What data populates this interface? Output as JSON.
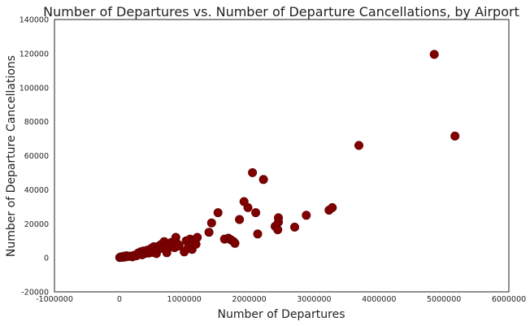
{
  "chart_data": {
    "type": "scatter",
    "title": "Number of Departures vs. Number of Departure Cancellations, by Airport",
    "xlabel": "Number of Departures",
    "ylabel": "Number of Departure Cancellations",
    "xlim": [
      -1000000,
      6000000
    ],
    "ylim": [
      -20000,
      140000
    ],
    "xticks": [
      -1000000,
      0,
      1000000,
      2000000,
      3000000,
      4000000,
      5000000,
      6000000
    ],
    "xtick_labels": [
      "-1000000",
      "0",
      "1000000",
      "2000000",
      "3000000",
      "4000000",
      "5000000",
      "6000000"
    ],
    "yticks": [
      -20000,
      0,
      20000,
      40000,
      60000,
      80000,
      100000,
      120000,
      140000
    ],
    "ytick_labels": [
      "-20000",
      "0",
      "20000",
      "40000",
      "60000",
      "80000",
      "100000",
      "120000",
      "140000"
    ],
    "grid": false,
    "marker_color": "#800000",
    "points": [
      [
        5000,
        200
      ],
      [
        15000,
        400
      ],
      [
        30000,
        600
      ],
      [
        50000,
        300
      ],
      [
        70000,
        900
      ],
      [
        90000,
        500
      ],
      [
        110000,
        1200
      ],
      [
        140000,
        800
      ],
      [
        170000,
        1000
      ],
      [
        200000,
        600
      ],
      [
        230000,
        1500
      ],
      [
        260000,
        1200
      ],
      [
        290000,
        2800
      ],
      [
        310000,
        2000
      ],
      [
        330000,
        3500
      ],
      [
        350000,
        1800
      ],
      [
        370000,
        4000
      ],
      [
        390000,
        2500
      ],
      [
        410000,
        3000
      ],
      [
        430000,
        4500
      ],
      [
        450000,
        2800
      ],
      [
        470000,
        3800
      ],
      [
        490000,
        5500
      ],
      [
        510000,
        3200
      ],
      [
        530000,
        6500
      ],
      [
        550000,
        4000
      ],
      [
        570000,
        2500
      ],
      [
        590000,
        5000
      ],
      [
        610000,
        7000
      ],
      [
        630000,
        6000
      ],
      [
        650000,
        8000
      ],
      [
        670000,
        5500
      ],
      [
        690000,
        9500
      ],
      [
        710000,
        7000
      ],
      [
        730000,
        3000
      ],
      [
        750000,
        8000
      ],
      [
        780000,
        6500
      ],
      [
        800000,
        9000
      ],
      [
        830000,
        7500
      ],
      [
        850000,
        6000
      ],
      [
        870000,
        12000
      ],
      [
        900000,
        8000
      ],
      [
        920000,
        7000
      ],
      [
        1000000,
        3500
      ],
      [
        1030000,
        10000
      ],
      [
        1060000,
        6000
      ],
      [
        1090000,
        11000
      ],
      [
        1120000,
        5000
      ],
      [
        1150000,
        10000
      ],
      [
        1180000,
        8000
      ],
      [
        1200000,
        12000
      ],
      [
        1380000,
        15000
      ],
      [
        1420000,
        20500
      ],
      [
        1520000,
        26500
      ],
      [
        1620000,
        11000
      ],
      [
        1680000,
        11500
      ],
      [
        1720000,
        10500
      ],
      [
        1760000,
        9500
      ],
      [
        1780000,
        8500
      ],
      [
        1850000,
        22500
      ],
      [
        1920000,
        33000
      ],
      [
        1980000,
        29500
      ],
      [
        2050000,
        50000
      ],
      [
        2100000,
        26500
      ],
      [
        2130000,
        14000
      ],
      [
        2220000,
        46000
      ],
      [
        2400000,
        18500
      ],
      [
        2440000,
        16500
      ],
      [
        2450000,
        21000
      ],
      [
        2450000,
        23500
      ],
      [
        2700000,
        18000
      ],
      [
        2880000,
        25000
      ],
      [
        3230000,
        28000
      ],
      [
        3280000,
        29500
      ],
      [
        3690000,
        66000
      ],
      [
        4850000,
        119500
      ],
      [
        5170000,
        71500
      ]
    ]
  }
}
